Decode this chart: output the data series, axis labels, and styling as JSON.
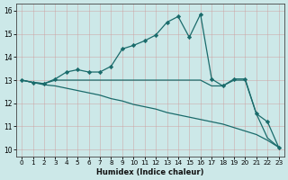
{
  "xlabel": "Humidex (Indice chaleur)",
  "bg_color": "#cce8e8",
  "grid_color": "#aacccc",
  "line_color": "#1a6b6b",
  "xlim": [
    -0.5,
    23.5
  ],
  "ylim": [
    9.7,
    16.3
  ],
  "xticks": [
    0,
    1,
    2,
    3,
    4,
    5,
    6,
    7,
    8,
    9,
    10,
    11,
    12,
    13,
    14,
    15,
    16,
    17,
    18,
    19,
    20,
    21,
    22,
    23
  ],
  "yticks": [
    10,
    11,
    12,
    13,
    14,
    15,
    16
  ],
  "line1_x": [
    0,
    1,
    2,
    3,
    4,
    5,
    6,
    7,
    8,
    9,
    10,
    11,
    12,
    13,
    14,
    15,
    16,
    17,
    18,
    19,
    20,
    21,
    22,
    23
  ],
  "line1_y": [
    13.0,
    12.9,
    12.85,
    13.05,
    13.35,
    13.45,
    13.35,
    13.35,
    13.6,
    14.35,
    14.5,
    14.7,
    14.95,
    15.5,
    15.75,
    14.85,
    15.85,
    13.05,
    12.75,
    13.05,
    13.05,
    11.55,
    11.2,
    10.1
  ],
  "line2_x": [
    0,
    1,
    2,
    3,
    4,
    5,
    6,
    7,
    8,
    9,
    10,
    11,
    12,
    13,
    14,
    15,
    16,
    17,
    18,
    19,
    20,
    21,
    22,
    23
  ],
  "line2_y": [
    13.0,
    12.9,
    12.85,
    13.0,
    13.0,
    13.0,
    13.0,
    13.0,
    13.0,
    13.0,
    13.0,
    13.0,
    13.0,
    13.0,
    13.0,
    13.0,
    13.0,
    12.75,
    12.75,
    13.0,
    13.0,
    11.55,
    10.5,
    10.1
  ],
  "line3_x": [
    0,
    1,
    2,
    3,
    4,
    5,
    6,
    7,
    8,
    9,
    10,
    11,
    12,
    13,
    14,
    15,
    16,
    17,
    18,
    19,
    20,
    21,
    22,
    23
  ],
  "line3_y": [
    13.0,
    12.9,
    12.8,
    12.75,
    12.65,
    12.55,
    12.45,
    12.35,
    12.2,
    12.1,
    11.95,
    11.85,
    11.75,
    11.6,
    11.5,
    11.4,
    11.3,
    11.2,
    11.1,
    10.95,
    10.8,
    10.65,
    10.4,
    10.1
  ]
}
